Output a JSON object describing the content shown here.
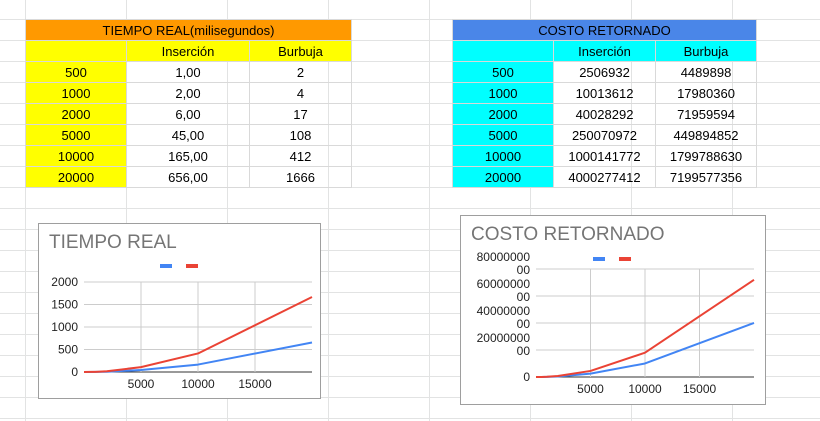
{
  "tables": [
    {
      "title": "TIEMPO REAL(milisegundos)",
      "headers": [
        "",
        "Inserción",
        "Burbuja"
      ],
      "rows": [
        [
          "500",
          "1,00",
          "2"
        ],
        [
          "1000",
          "2,00",
          "4"
        ],
        [
          "2000",
          "6,00",
          "17"
        ],
        [
          "5000",
          "45,00",
          "108"
        ],
        [
          "10000",
          "165,00",
          "412"
        ],
        [
          "20000",
          "656,00",
          "1666"
        ]
      ]
    },
    {
      "title": "COSTO RETORNADO",
      "headers": [
        "",
        "Inserción",
        "Burbuja"
      ],
      "rows": [
        [
          "500",
          "2506932",
          "4489898"
        ],
        [
          "1000",
          "10013612",
          "17980360"
        ],
        [
          "2000",
          "40028292",
          "71959594"
        ],
        [
          "5000",
          "250070972",
          "449894852"
        ],
        [
          "10000",
          "1000141772",
          "1799788630"
        ],
        [
          "20000",
          "4000277412",
          "7199577356"
        ]
      ]
    }
  ],
  "colors": {
    "title_orange": "#ff9900",
    "title_blue": "#4a86e8",
    "cell_yellow": "#ffff00",
    "cell_cyan": "#00ffff",
    "series_insercion": "#4285f4",
    "series_burbuja": "#ea4335"
  },
  "chart_data": [
    {
      "type": "line",
      "title": "TIEMPO REAL",
      "x": [
        500,
        1000,
        2000,
        5000,
        10000,
        20000
      ],
      "series": [
        {
          "values": [
            1,
            2,
            6,
            45,
            165,
            656
          ],
          "color": "#4285f4"
        },
        {
          "values": [
            2,
            4,
            17,
            108,
            412,
            1666
          ],
          "color": "#ea4335"
        }
      ],
      "xlim": [
        0,
        20000
      ],
      "xticks": [
        5000,
        10000,
        15000
      ],
      "xtick_labels": [
        "5000",
        "10000",
        "15000"
      ],
      "ylim": [
        0,
        2000
      ],
      "yticks": [
        0,
        500,
        1000,
        1500,
        2000
      ],
      "ytick_labels": [
        "0",
        "500",
        "1000",
        "1500",
        "2000"
      ],
      "legend": "top",
      "grid": true
    },
    {
      "type": "line",
      "title": "COSTO RETORNADO",
      "x": [
        500,
        1000,
        2000,
        5000,
        10000,
        20000
      ],
      "series": [
        {
          "values": [
            2506932,
            10013612,
            40028292,
            250070972,
            1000141772,
            4000277412
          ],
          "color": "#4285f4"
        },
        {
          "values": [
            4489898,
            17980360,
            71959594,
            449894852,
            1799788630,
            7199577356
          ],
          "color": "#ea4335"
        }
      ],
      "xlim": [
        0,
        20000
      ],
      "xticks": [
        5000,
        10000,
        15000
      ],
      "xtick_labels": [
        "5000",
        "10000",
        "15000"
      ],
      "ylim": [
        0,
        8000000000
      ],
      "yticks": [
        0,
        2000000000,
        4000000000,
        6000000000,
        8000000000
      ],
      "ytick_labels": [
        "0",
        "20000000\n00",
        "40000000\n00",
        "60000000\n00",
        "80000000\n00"
      ],
      "legend": "top",
      "grid": true
    }
  ]
}
